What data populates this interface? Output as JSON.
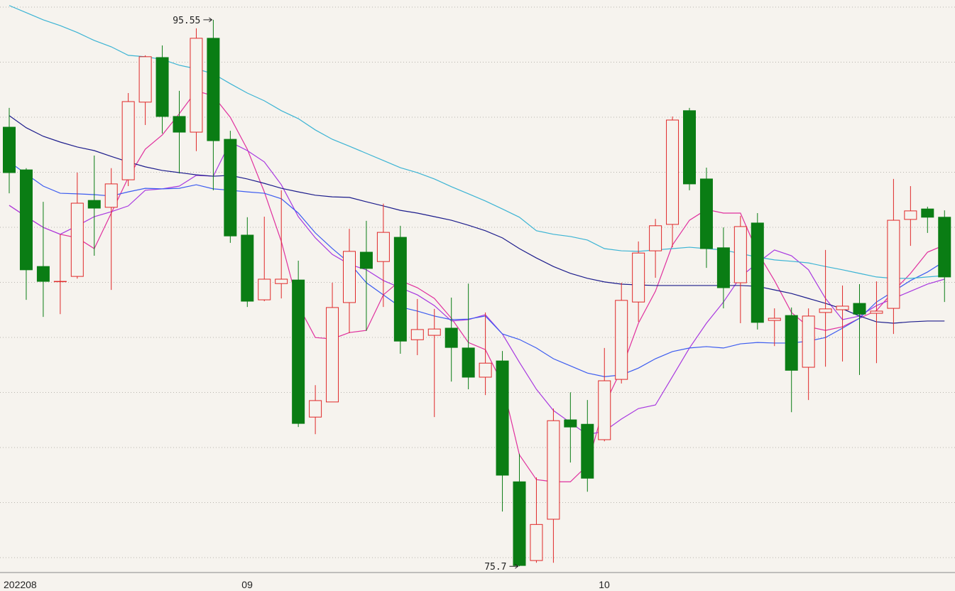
{
  "chart_data": {
    "type": "candlestick",
    "categories": [
      "202208",
      null,
      null,
      null,
      null,
      null,
      null,
      null,
      null,
      null,
      null,
      null,
      null,
      null,
      "09",
      null,
      null,
      null,
      null,
      null,
      null,
      null,
      null,
      null,
      null,
      null,
      null,
      null,
      null,
      null,
      null,
      null,
      null,
      null,
      null,
      "10",
      null,
      null,
      null,
      null,
      null,
      null,
      null,
      null,
      null,
      null,
      null,
      null,
      null,
      null,
      null,
      null,
      null,
      null,
      null,
      null
    ],
    "open": [
      91.65,
      90.1,
      86.59,
      86.05,
      86.23,
      88.99,
      88.74,
      89.74,
      92.56,
      94.18,
      92.04,
      91.47,
      94.88,
      91.21,
      87.73,
      85.38,
      85.97,
      86.1,
      81.12,
      81.67,
      85.28,
      87.11,
      86.77,
      87.65,
      83.93,
      84.09,
      84.35,
      83.63,
      82.57,
      83.16,
      78.77,
      75.91,
      77.41,
      81.02,
      80.86,
      80.3,
      82.49,
      85.3,
      87.16,
      88.12,
      92.25,
      89.77,
      87.27,
      86.0,
      88.17,
      84.63,
      84.81,
      82.93,
      84.92,
      85.02,
      85.25,
      84.89,
      85.07,
      88.3,
      88.68,
      88.38
    ],
    "high": [
      92.35,
      90.16,
      88.94,
      87.76,
      90.0,
      90.62,
      90.16,
      92.89,
      94.26,
      94.62,
      92.97,
      95.24,
      95.55,
      91.52,
      88.38,
      88.4,
      89.36,
      86.8,
      82.28,
      86.0,
      87.96,
      88.25,
      88.87,
      88.07,
      85.41,
      85.05,
      85.46,
      85.97,
      84.92,
      83.52,
      79.79,
      78.93,
      81.43,
      82.02,
      81.74,
      83.63,
      86.0,
      87.5,
      88.32,
      92.04,
      92.35,
      90.18,
      88.01,
      88.43,
      88.53,
      85.07,
      85.1,
      85.07,
      87.19,
      85.9,
      85.95,
      86.05,
      89.77,
      89.51,
      88.76,
      88.63
    ],
    "low": [
      89.25,
      85.38,
      84.76,
      84.86,
      86.15,
      86.98,
      85.74,
      89.51,
      91.73,
      91.42,
      89.97,
      90.78,
      89.36,
      87.45,
      85.12,
      85.33,
      85.43,
      80.76,
      80.5,
      81.67,
      84.17,
      84.25,
      85.12,
      83.42,
      83.37,
      81.12,
      82.41,
      82.13,
      81.92,
      77.69,
      75.7,
      75.83,
      75.83,
      79.47,
      78.41,
      80.24,
      82.34,
      84.58,
      86.18,
      87.29,
      89.36,
      86.54,
      85.07,
      84.53,
      84.3,
      83.7,
      81.3,
      81.74,
      82.95,
      83.14,
      82.65,
      83.08,
      84.14,
      87.34,
      87.81,
      85.3
    ],
    "close": [
      90.0,
      86.47,
      86.05,
      86.05,
      88.89,
      88.71,
      89.59,
      92.58,
      94.21,
      92.04,
      91.47,
      94.88,
      91.16,
      87.7,
      85.33,
      86.13,
      86.13,
      80.89,
      81.72,
      85.1,
      87.14,
      86.52,
      87.83,
      83.88,
      84.3,
      84.32,
      83.65,
      82.57,
      83.08,
      79.01,
      75.73,
      77.22,
      80.99,
      80.76,
      78.9,
      82.44,
      85.36,
      87.08,
      88.07,
      91.91,
      89.59,
      87.24,
      85.82,
      88.04,
      84.56,
      84.71,
      82.82,
      84.79,
      85.05,
      85.15,
      84.86,
      84.97,
      88.27,
      88.61,
      88.38,
      86.21
    ],
    "up_color": "#e02828",
    "down_color": "#0a7d14",
    "lines": [
      {
        "color": "#e0309e",
        "values": [
          88.81,
          88.4,
          88.01,
          87.76,
          87.63,
          87.24,
          88.53,
          89.82,
          90.85,
          91.37,
          92.14,
          92.97,
          92.79,
          92.01,
          90.85,
          89.3,
          87.5,
          85.17,
          84.01,
          83.96,
          84.19,
          84.27,
          85.56,
          86.08,
          85.82,
          85.43,
          84.71,
          83.83,
          83.57,
          82.34,
          79.75,
          78.85,
          78.77,
          78.77,
          79.37,
          81.56,
          82.85,
          84.53,
          85.69,
          87.37,
          88.27,
          88.66,
          88.53,
          88.53,
          87.11,
          86.08,
          84.92,
          84.4,
          84.27,
          84.4,
          84.71,
          84.99,
          85.69,
          86.34,
          87.11,
          87.37
        ]
      },
      {
        "color": "#a838e0",
        "values": [
          88.81,
          88.4,
          88.01,
          87.76,
          88.07,
          88.4,
          88.58,
          88.79,
          89.36,
          89.41,
          89.51,
          89.9,
          89.87,
          91.11,
          90.8,
          90.39,
          89.56,
          88.4,
          87.63,
          87.03,
          86.67,
          86.47,
          86.08,
          85.82,
          85.56,
          85.17,
          84.61,
          84.66,
          84.84,
          84.14,
          83.11,
          82.13,
          81.36,
          80.92,
          80.48,
          80.61,
          81.05,
          81.43,
          81.56,
          82.59,
          83.63,
          84.53,
          85.3,
          86.21,
          86.72,
          87.19,
          86.98,
          86.47,
          85.43,
          84.66,
          84.79,
          85.17,
          85.43,
          85.69,
          85.95,
          86.13
        ]
      },
      {
        "color": "#3c5cf0",
        "values": [
          90.39,
          89.95,
          89.51,
          89.25,
          89.23,
          89.2,
          89.15,
          89.3,
          89.43,
          89.41,
          89.43,
          89.56,
          89.41,
          89.36,
          89.3,
          89.25,
          89.05,
          88.53,
          87.81,
          87.24,
          86.72,
          86.0,
          85.56,
          85.12,
          84.97,
          84.79,
          84.66,
          84.68,
          84.79,
          84.14,
          83.94,
          83.63,
          83.24,
          82.98,
          82.72,
          82.59,
          82.65,
          82.9,
          83.24,
          83.5,
          83.63,
          83.68,
          83.63,
          83.78,
          83.83,
          83.81,
          83.81,
          83.88,
          84.01,
          84.35,
          84.71,
          85.3,
          85.69,
          86.08,
          86.39,
          86.78
        ]
      },
      {
        "color": "#1c1c8c",
        "values": [
          92.07,
          91.63,
          91.32,
          91.11,
          90.93,
          90.8,
          90.59,
          90.39,
          90.21,
          90.08,
          90.0,
          89.92,
          89.87,
          89.9,
          89.77,
          89.61,
          89.43,
          89.3,
          89.18,
          89.12,
          89.1,
          88.94,
          88.79,
          88.63,
          88.53,
          88.4,
          88.27,
          88.09,
          87.89,
          87.63,
          87.24,
          86.9,
          86.59,
          86.34,
          86.16,
          86.03,
          85.95,
          85.92,
          85.9,
          85.9,
          85.9,
          85.9,
          85.9,
          85.9,
          85.87,
          85.74,
          85.61,
          85.43,
          85.25,
          85.05,
          84.79,
          84.58,
          84.53,
          84.58,
          84.61,
          84.61
        ]
      },
      {
        "color": "#3cb4d4",
        "values": [
          96.07,
          95.81,
          95.55,
          95.34,
          95.09,
          94.8,
          94.57,
          94.26,
          94.21,
          94.11,
          93.9,
          93.77,
          93.59,
          93.23,
          92.89,
          92.61,
          92.25,
          91.96,
          91.55,
          91.21,
          90.96,
          90.7,
          90.44,
          90.18,
          90.0,
          89.77,
          89.49,
          89.23,
          88.97,
          88.68,
          88.38,
          87.89,
          87.76,
          87.68,
          87.55,
          87.24,
          87.16,
          87.14,
          87.19,
          87.24,
          87.29,
          87.24,
          87.19,
          87.06,
          86.93,
          86.83,
          86.78,
          86.72,
          86.59,
          86.47,
          86.34,
          86.21,
          86.16,
          86.16,
          86.21,
          86.26
        ]
      }
    ],
    "ylim": [
      75.5,
      96.27
    ],
    "grid": true
  }
}
